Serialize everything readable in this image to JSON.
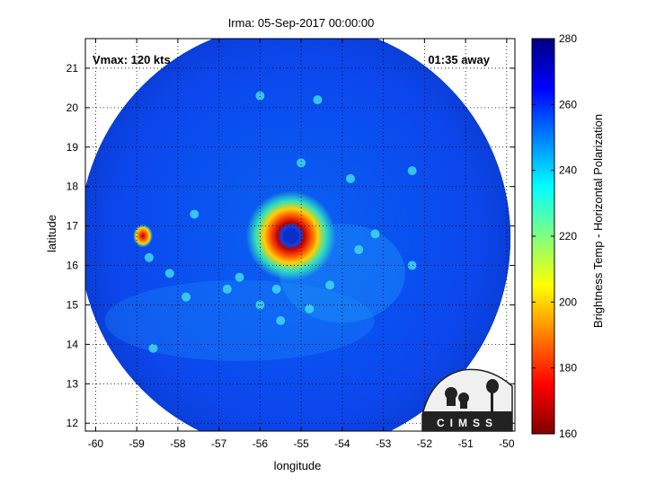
{
  "chart_data": {
    "type": "heatmap",
    "title": "Irma: 05-Sep-2017 00:00:00",
    "xlabel": "longitude",
    "ylabel": "latitude",
    "xlim": [
      -60.25,
      -49.8
    ],
    "ylim": [
      11.8,
      21.75
    ],
    "xticks": [
      -60,
      -59,
      -58,
      -57,
      -56,
      -55,
      -54,
      -53,
      -52,
      -51,
      -50
    ],
    "yticks": [
      12,
      13,
      14,
      15,
      16,
      17,
      18,
      19,
      20,
      21
    ],
    "grid": true,
    "annotations": {
      "vmax": "Vmax: 120 kts",
      "time_away": "01:35 away"
    },
    "colorbar": {
      "label": "Brightness Temp - Horizontal Polarization",
      "range": [
        160,
        280
      ],
      "ticks": [
        160,
        180,
        200,
        220,
        240,
        260,
        280
      ],
      "colormap": "jet"
    },
    "swath_center": [
      -55.15,
      16.7
    ],
    "storm_eye": [
      -55.25,
      16.75
    ],
    "features": [
      {
        "lon": -55.25,
        "lat": 16.75,
        "tb": 175,
        "label": "eyewall"
      },
      {
        "lon": -55.25,
        "lat": 16.75,
        "tb": 262,
        "label": "eye"
      },
      {
        "lon": -58.85,
        "lat": 16.75,
        "tb": 185,
        "label": "convective cell"
      }
    ],
    "logo": "CIMSS"
  }
}
